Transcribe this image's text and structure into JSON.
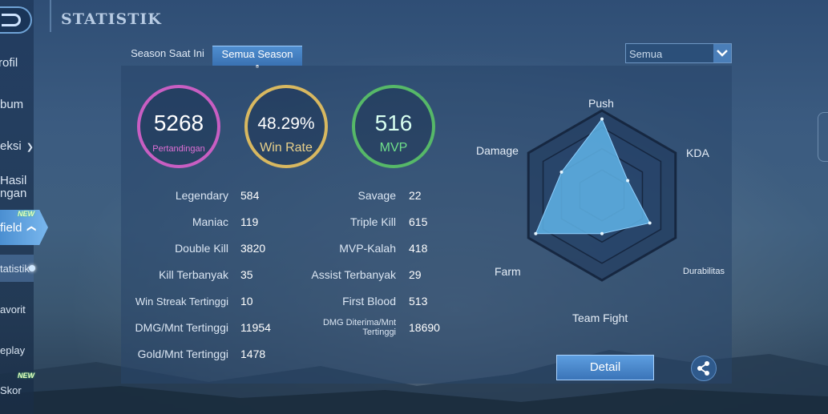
{
  "header": {
    "title": "STATISTIK"
  },
  "sidebar": {
    "items": [
      {
        "label": "rofil"
      },
      {
        "label": "bum"
      },
      {
        "label": "eksi"
      },
      {
        "label": "Hasil"
      },
      {
        "label": "ngan"
      },
      {
        "label": "field"
      },
      {
        "label": "tatistik"
      },
      {
        "label": "avorit"
      },
      {
        "label": "eplay"
      },
      {
        "label": "Skor"
      }
    ],
    "new_badge": "NEW"
  },
  "tabs": [
    {
      "label": "Season Saat Ini"
    },
    {
      "label": "Semua Season"
    }
  ],
  "filter": {
    "selected": "Semua"
  },
  "summary": {
    "matches": {
      "value": "5268",
      "label": "Pertandingan",
      "color": "#d060c8"
    },
    "win_rate": {
      "value": "48.29%",
      "label": "Win Rate",
      "color": "#d8b860"
    },
    "mvp": {
      "value": "516",
      "label": "MVP",
      "color": "#59c06a"
    }
  },
  "stats_left": [
    {
      "label": "Legendary",
      "value": "584"
    },
    {
      "label": "Maniac",
      "value": "119"
    },
    {
      "label": "Double Kill",
      "value": "3820"
    },
    {
      "label": "Kill Terbanyak",
      "value": "35"
    },
    {
      "label": "Win Streak Tertinggi",
      "value": "10"
    },
    {
      "label": "DMG/Mnt Tertinggi",
      "value": "11954"
    },
    {
      "label": "Gold/Mnt Tertinggi",
      "value": "1478"
    }
  ],
  "stats_right": [
    {
      "label": "Savage",
      "value": "22"
    },
    {
      "label": "Triple Kill",
      "value": "615"
    },
    {
      "label": "MVP-Kalah",
      "value": "418"
    },
    {
      "label": "Assist Terbanyak",
      "value": "29"
    },
    {
      "label": "First Blood",
      "value": "513"
    },
    {
      "label": "DMG Diterima/Mnt Tertinggi",
      "value": "18690"
    }
  ],
  "radar": {
    "axes": [
      "Push",
      "KDA",
      "Durabilitas",
      "Team Fight",
      "Farm",
      "Damage"
    ],
    "values": [
      0.9,
      0.35,
      0.65,
      0.45,
      0.9,
      0.55
    ]
  },
  "actions": {
    "detail_label": "Detail"
  },
  "icons": {
    "share": "share-icon",
    "back": "back-icon",
    "dropdown": "chevron-down-icon"
  }
}
